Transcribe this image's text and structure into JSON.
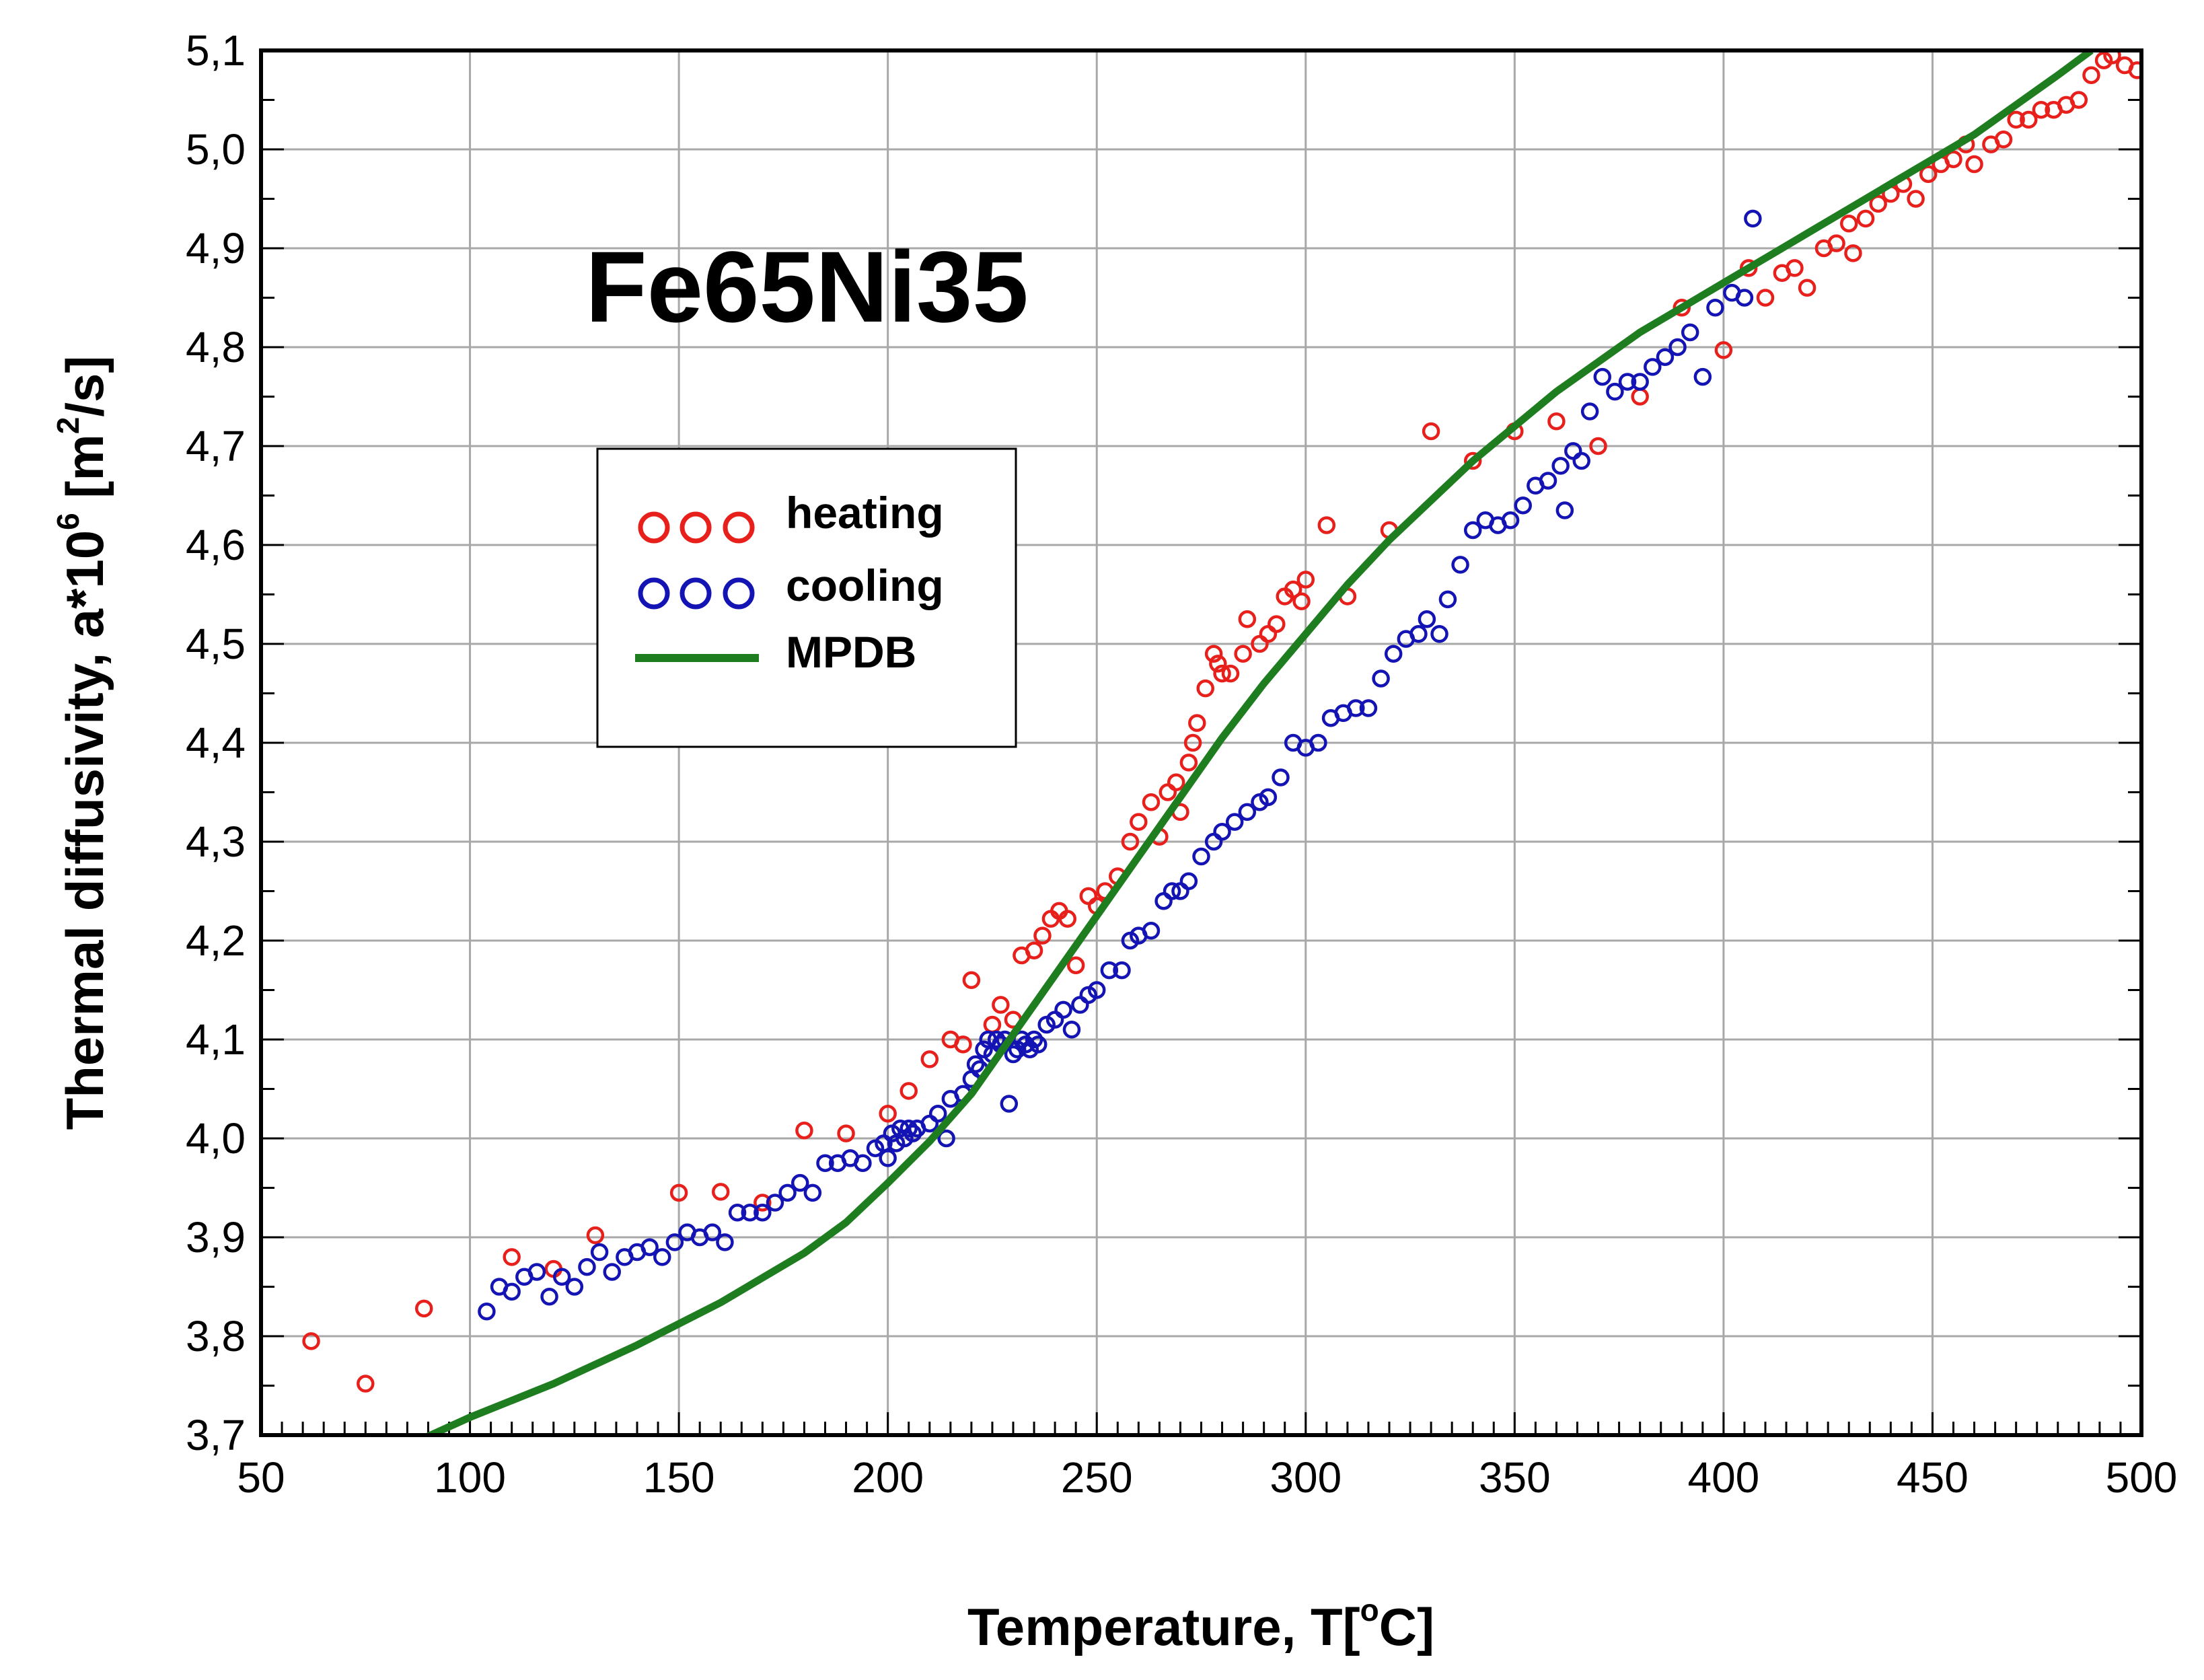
{
  "chart_data": {
    "type": "scatter",
    "title": "Fe65Ni35",
    "xlabel": {
      "main": "Temperature, T[",
      "sup": "o",
      "tail": "C]"
    },
    "ylabel": {
      "main": "Thermal diffusivity, a*10",
      "sup1": "6",
      "mid": " [m",
      "sup2": "2",
      "tail": "/s]"
    },
    "xlim": [
      50,
      500
    ],
    "ylim": [
      3.7,
      5.1
    ],
    "xticks": [
      50,
      100,
      150,
      200,
      250,
      300,
      350,
      400,
      450,
      500
    ],
    "yticks": [
      3.7,
      3.8,
      3.9,
      4.0,
      4.1,
      4.2,
      4.3,
      4.4,
      4.5,
      4.6,
      4.7,
      4.8,
      4.9,
      5.0,
      5.1
    ],
    "xtick_labels": [
      "50",
      "100",
      "150",
      "200",
      "250",
      "300",
      "350",
      "400",
      "450",
      "500"
    ],
    "ytick_labels": [
      "3,7",
      "3,8",
      "3,9",
      "4,0",
      "4,1",
      "4,2",
      "4,3",
      "4,4",
      "4,5",
      "4,6",
      "4,7",
      "4,8",
      "4,9",
      "5,0",
      "5,1"
    ],
    "grid": true,
    "legend_position": "upper-left",
    "series": [
      {
        "name": "heating",
        "marker": "open-circle",
        "color": "#e8201c",
        "points": [
          [
            62,
            3.795
          ],
          [
            75,
            3.752
          ],
          [
            89,
            3.828
          ],
          [
            110,
            3.88
          ],
          [
            120,
            3.868
          ],
          [
            130,
            3.902
          ],
          [
            150,
            3.945
          ],
          [
            160,
            3.946
          ],
          [
            170,
            3.935
          ],
          [
            180,
            4.008
          ],
          [
            190,
            4.005
          ],
          [
            200,
            4.025
          ],
          [
            205,
            4.048
          ],
          [
            210,
            4.08
          ],
          [
            215,
            4.1
          ],
          [
            218,
            4.095
          ],
          [
            220,
            4.16
          ],
          [
            225,
            4.115
          ],
          [
            227,
            4.135
          ],
          [
            230,
            4.12
          ],
          [
            232,
            4.185
          ],
          [
            235,
            4.19
          ],
          [
            237,
            4.205
          ],
          [
            239,
            4.222
          ],
          [
            241,
            4.23
          ],
          [
            243,
            4.222
          ],
          [
            245,
            4.175
          ],
          [
            248,
            4.245
          ],
          [
            250,
            4.235
          ],
          [
            252,
            4.25
          ],
          [
            255,
            4.265
          ],
          [
            258,
            4.3
          ],
          [
            260,
            4.32
          ],
          [
            263,
            4.34
          ],
          [
            265,
            4.305
          ],
          [
            267,
            4.35
          ],
          [
            269,
            4.36
          ],
          [
            270,
            4.33
          ],
          [
            272,
            4.38
          ],
          [
            273,
            4.4
          ],
          [
            274,
            4.42
          ],
          [
            276,
            4.455
          ],
          [
            278,
            4.49
          ],
          [
            279,
            4.48
          ],
          [
            280,
            4.47
          ],
          [
            282,
            4.47
          ],
          [
            285,
            4.49
          ],
          [
            286,
            4.525
          ],
          [
            289,
            4.5
          ],
          [
            291,
            4.51
          ],
          [
            293,
            4.52
          ],
          [
            295,
            4.548
          ],
          [
            297,
            4.555
          ],
          [
            299,
            4.543
          ],
          [
            300,
            4.565
          ],
          [
            305,
            4.62
          ],
          [
            310,
            4.548
          ],
          [
            320,
            4.615
          ],
          [
            330,
            4.715
          ],
          [
            340,
            4.685
          ],
          [
            350,
            4.715
          ],
          [
            360,
            4.725
          ],
          [
            370,
            4.7
          ],
          [
            380,
            4.75
          ],
          [
            390,
            4.84
          ],
          [
            400,
            4.797
          ],
          [
            406,
            4.88
          ],
          [
            410,
            4.85
          ],
          [
            414,
            4.875
          ],
          [
            417,
            4.88
          ],
          [
            420,
            4.86
          ],
          [
            424,
            4.9
          ],
          [
            427,
            4.905
          ],
          [
            430,
            4.925
          ],
          [
            431,
            4.895
          ],
          [
            434,
            4.93
          ],
          [
            437,
            4.945
          ],
          [
            440,
            4.955
          ],
          [
            443,
            4.965
          ],
          [
            446,
            4.95
          ],
          [
            449,
            4.975
          ],
          [
            452,
            4.985
          ],
          [
            455,
            4.99
          ],
          [
            458,
            5.005
          ],
          [
            460,
            4.985
          ],
          [
            464,
            5.005
          ],
          [
            467,
            5.01
          ],
          [
            470,
            5.03
          ],
          [
            473,
            5.03
          ],
          [
            476,
            5.04
          ],
          [
            479,
            5.04
          ],
          [
            482,
            5.045
          ],
          [
            485,
            5.05
          ],
          [
            488,
            5.075
          ],
          [
            491,
            5.09
          ],
          [
            493,
            5.095
          ],
          [
            496,
            5.085
          ],
          [
            499,
            5.08
          ]
        ]
      },
      {
        "name": "cooling",
        "marker": "open-circle",
        "color": "#1414b4",
        "points": [
          [
            104,
            3.825
          ],
          [
            107,
            3.85
          ],
          [
            110,
            3.845
          ],
          [
            113,
            3.86
          ],
          [
            116,
            3.865
          ],
          [
            119,
            3.84
          ],
          [
            122,
            3.86
          ],
          [
            125,
            3.85
          ],
          [
            128,
            3.87
          ],
          [
            131,
            3.885
          ],
          [
            134,
            3.865
          ],
          [
            137,
            3.88
          ],
          [
            140,
            3.885
          ],
          [
            143,
            3.89
          ],
          [
            146,
            3.88
          ],
          [
            149,
            3.895
          ],
          [
            152,
            3.905
          ],
          [
            155,
            3.9
          ],
          [
            158,
            3.905
          ],
          [
            161,
            3.895
          ],
          [
            164,
            3.925
          ],
          [
            167,
            3.925
          ],
          [
            170,
            3.925
          ],
          [
            173,
            3.935
          ],
          [
            176,
            3.945
          ],
          [
            179,
            3.955
          ],
          [
            182,
            3.945
          ],
          [
            185,
            3.975
          ],
          [
            188,
            3.975
          ],
          [
            191,
            3.98
          ],
          [
            194,
            3.975
          ],
          [
            197,
            3.99
          ],
          [
            199,
            3.995
          ],
          [
            200,
            3.98
          ],
          [
            201,
            4.005
          ],
          [
            202,
            3.995
          ],
          [
            203,
            4.01
          ],
          [
            204,
            4.0
          ],
          [
            205,
            4.01
          ],
          [
            206,
            4.005
          ],
          [
            207,
            4.01
          ],
          [
            210,
            4.015
          ],
          [
            212,
            4.025
          ],
          [
            214,
            4.0
          ],
          [
            215,
            4.04
          ],
          [
            218,
            4.045
          ],
          [
            220,
            4.06
          ],
          [
            221,
            4.075
          ],
          [
            222,
            4.07
          ],
          [
            223,
            4.09
          ],
          [
            224,
            4.1
          ],
          [
            225,
            4.085
          ],
          [
            226,
            4.1
          ],
          [
            227,
            4.095
          ],
          [
            228,
            4.1
          ],
          [
            229,
            4.035
          ],
          [
            230,
            4.085
          ],
          [
            231,
            4.09
          ],
          [
            232,
            4.1
          ],
          [
            233,
            4.095
          ],
          [
            234,
            4.09
          ],
          [
            235,
            4.1
          ],
          [
            236,
            4.095
          ],
          [
            238,
            4.115
          ],
          [
            240,
            4.12
          ],
          [
            242,
            4.13
          ],
          [
            244,
            4.11
          ],
          [
            246,
            4.135
          ],
          [
            248,
            4.145
          ],
          [
            250,
            4.15
          ],
          [
            253,
            4.17
          ],
          [
            256,
            4.17
          ],
          [
            258,
            4.2
          ],
          [
            260,
            4.205
          ],
          [
            263,
            4.21
          ],
          [
            266,
            4.24
          ],
          [
            268,
            4.25
          ],
          [
            270,
            4.25
          ],
          [
            272,
            4.26
          ],
          [
            275,
            4.285
          ],
          [
            278,
            4.3
          ],
          [
            280,
            4.31
          ],
          [
            283,
            4.32
          ],
          [
            286,
            4.33
          ],
          [
            289,
            4.34
          ],
          [
            291,
            4.345
          ],
          [
            294,
            4.365
          ],
          [
            297,
            4.4
          ],
          [
            300,
            4.395
          ],
          [
            303,
            4.4
          ],
          [
            306,
            4.425
          ],
          [
            309,
            4.43
          ],
          [
            312,
            4.435
          ],
          [
            315,
            4.435
          ],
          [
            318,
            4.465
          ],
          [
            321,
            4.49
          ],
          [
            324,
            4.505
          ],
          [
            327,
            4.51
          ],
          [
            329,
            4.525
          ],
          [
            332,
            4.51
          ],
          [
            334,
            4.545
          ],
          [
            337,
            4.58
          ],
          [
            340,
            4.615
          ],
          [
            343,
            4.625
          ],
          [
            346,
            4.62
          ],
          [
            349,
            4.625
          ],
          [
            352,
            4.64
          ],
          [
            355,
            4.66
          ],
          [
            358,
            4.665
          ],
          [
            361,
            4.68
          ],
          [
            362,
            4.635
          ],
          [
            364,
            4.695
          ],
          [
            366,
            4.685
          ],
          [
            368,
            4.735
          ],
          [
            371,
            4.77
          ],
          [
            374,
            4.755
          ],
          [
            377,
            4.765
          ],
          [
            380,
            4.765
          ],
          [
            383,
            4.78
          ],
          [
            386,
            4.79
          ],
          [
            389,
            4.8
          ],
          [
            392,
            4.815
          ],
          [
            395,
            4.77
          ],
          [
            398,
            4.84
          ],
          [
            402,
            4.855
          ],
          [
            405,
            4.85
          ],
          [
            407,
            4.93
          ]
        ]
      },
      {
        "name": "MPDB",
        "marker": "line",
        "color": "#1e7d1e",
        "points": [
          [
            88,
            3.695
          ],
          [
            100,
            3.718
          ],
          [
            120,
            3.752
          ],
          [
            140,
            3.791
          ],
          [
            160,
            3.834
          ],
          [
            180,
            3.884
          ],
          [
            190,
            3.915
          ],
          [
            200,
            3.955
          ],
          [
            210,
            3.997
          ],
          [
            220,
            4.045
          ],
          [
            230,
            4.105
          ],
          [
            240,
            4.165
          ],
          [
            250,
            4.225
          ],
          [
            260,
            4.285
          ],
          [
            270,
            4.345
          ],
          [
            280,
            4.405
          ],
          [
            290,
            4.46
          ],
          [
            300,
            4.51
          ],
          [
            310,
            4.56
          ],
          [
            320,
            4.605
          ],
          [
            330,
            4.645
          ],
          [
            340,
            4.685
          ],
          [
            350,
            4.72
          ],
          [
            360,
            4.755
          ],
          [
            370,
            4.785
          ],
          [
            380,
            4.815
          ],
          [
            390,
            4.84
          ],
          [
            400,
            4.865
          ],
          [
            410,
            4.89
          ],
          [
            420,
            4.915
          ],
          [
            430,
            4.94
          ],
          [
            440,
            4.965
          ],
          [
            450,
            4.99
          ],
          [
            460,
            5.015
          ],
          [
            470,
            5.045
          ],
          [
            480,
            5.075
          ],
          [
            488,
            5.1
          ]
        ]
      }
    ]
  }
}
